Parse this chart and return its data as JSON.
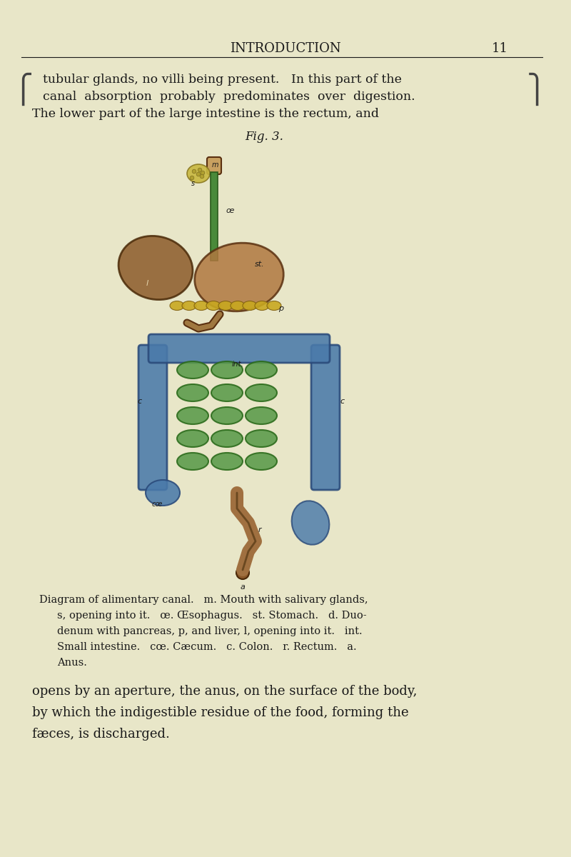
{
  "bg_color": "#e8e6c8",
  "title_text": "INTRODUCTION",
  "page_num": "11",
  "top_text_line1": "tubular glands, no villi being present.   In this part of the",
  "top_text_line2": "canal  absorption  probably  predominates  over  digestion.",
  "top_text_line3": "The lower part of the large intestine is the rectum, and",
  "fig_caption": "Fig. 3.",
  "caption_text_line1": "Diagram of alimentary canal.   m. Mouth with salivary glands,",
  "caption_text_line2": "s, opening into it.   œ. Œsophagus.   st. Stomach.   d. Duo-",
  "caption_text_line3": "denum with pancreas, p, and liver, l, opening into it.   int.",
  "caption_text_line4": "Small intestine.   cœ. Cæcum.   c. Colon.   r. Rectum.   a.",
  "caption_text_line5": "Anus.",
  "bottom_text_line1": "opens by an aperture, the anus, on the surface of the body,",
  "bottom_text_line2": "by which the indigestible residue of the food, forming the",
  "bottom_text_line3": "fæces, is discharged.",
  "esophagus_color": "#4a8a3a",
  "stomach_color": "#a06030",
  "liver_color": "#8b4513",
  "pancreas_color": "#c8a840",
  "small_intestine_color": "#5a9a4a",
  "large_intestine_color": "#4a7aaa",
  "rectum_color": "#a07040",
  "mouth_color": "#c8a870",
  "salivary_color": "#d4b870"
}
